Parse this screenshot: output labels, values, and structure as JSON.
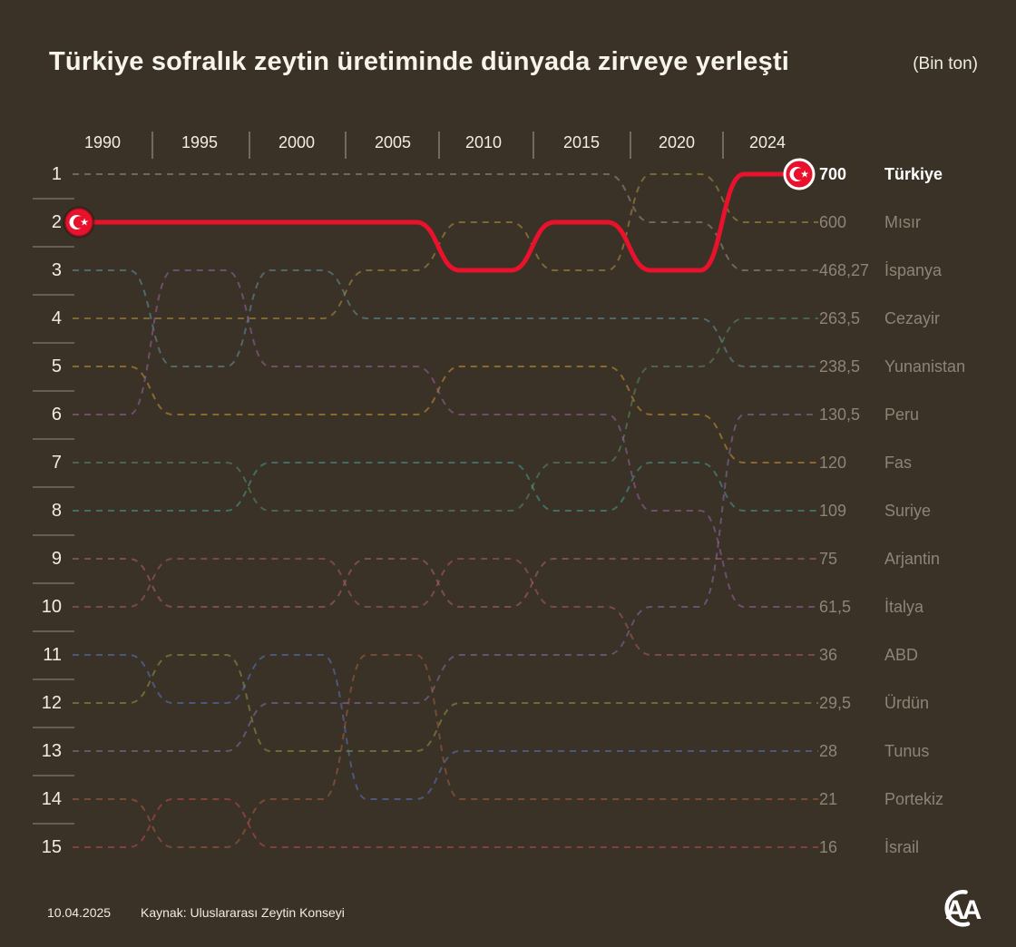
{
  "header": {
    "title": "Türkiye sofralık zeytin üretiminde dünyada zirveye yerleşti",
    "unit": "(Bin ton)"
  },
  "footer": {
    "date": "10.04.2025",
    "source": "Kaynak: Uluslararası Zeytin Konseyi",
    "logo_text": "AA"
  },
  "colors": {
    "background": "#3a3127",
    "highlight_red": "#e8122d",
    "muted_label": "#8e8476"
  },
  "chart_data": {
    "type": "line",
    "subtype": "bump-ranking",
    "years": [
      1990,
      1995,
      2000,
      2005,
      2010,
      2015,
      2020,
      2024
    ],
    "rank_axis": [
      1,
      2,
      3,
      4,
      5,
      6,
      7,
      8,
      9,
      10,
      11,
      12,
      13,
      14,
      15
    ],
    "highlight_country": "Türkiye",
    "series": [
      {
        "name": "Türkiye",
        "value_2024": "700",
        "final_rank": 1,
        "color": "#e8122d",
        "highlight": true,
        "ranks": [
          2,
          2,
          2,
          2,
          3,
          2,
          3,
          1
        ]
      },
      {
        "name": "Mısır",
        "value_2024": "600",
        "final_rank": 2,
        "color": "#a5893f",
        "highlight": false,
        "ranks": [
          4,
          4,
          4,
          3,
          2,
          3,
          1,
          2
        ]
      },
      {
        "name": "İspanya",
        "value_2024": "468,27",
        "final_rank": 3,
        "color": "#8f897c",
        "highlight": false,
        "ranks": [
          1,
          1,
          1,
          1,
          1,
          1,
          2,
          3
        ]
      },
      {
        "name": "Cezayir",
        "value_2024": "263,5",
        "final_rank": 4,
        "color": "#55885c",
        "highlight": false,
        "ranks": [
          7,
          7,
          8,
          8,
          8,
          7,
          5,
          4
        ]
      },
      {
        "name": "Yunanistan",
        "value_2024": "238,5",
        "final_rank": 5,
        "color": "#5f8b96",
        "highlight": false,
        "ranks": [
          3,
          5,
          3,
          4,
          4,
          4,
          4,
          5
        ]
      },
      {
        "name": "Peru",
        "value_2024": "130,5",
        "final_rank": 6,
        "color": "#83689c",
        "highlight": false,
        "ranks": [
          13,
          13,
          12,
          12,
          11,
          11,
          10,
          6
        ]
      },
      {
        "name": "Fas",
        "value_2024": "120",
        "final_rank": 7,
        "color": "#bd8a33",
        "highlight": false,
        "ranks": [
          5,
          6,
          6,
          6,
          5,
          5,
          6,
          7
        ]
      },
      {
        "name": "Suriye",
        "value_2024": "109",
        "final_rank": 8,
        "color": "#45958a",
        "highlight": false,
        "ranks": [
          8,
          8,
          7,
          7,
          7,
          8,
          7,
          8
        ]
      },
      {
        "name": "Arjantin",
        "value_2024": "75",
        "final_rank": 9,
        "color": "#a55f6b",
        "highlight": false,
        "ranks": [
          9,
          10,
          10,
          9,
          10,
          9,
          9,
          9
        ]
      },
      {
        "name": "İtalya",
        "value_2024": "61,5",
        "final_rank": 10,
        "color": "#8f5f99",
        "highlight": false,
        "ranks": [
          6,
          3,
          5,
          5,
          6,
          6,
          8,
          10
        ]
      },
      {
        "name": "ABD",
        "value_2024": "36",
        "final_rank": 11,
        "color": "#a05a55",
        "highlight": false,
        "ranks": [
          10,
          9,
          9,
          10,
          9,
          10,
          11,
          11
        ]
      },
      {
        "name": "Ürdün",
        "value_2024": "29,5",
        "final_rank": 12,
        "color": "#84913f",
        "highlight": false,
        "ranks": [
          12,
          11,
          13,
          13,
          12,
          12,
          12,
          12
        ]
      },
      {
        "name": "Tunus",
        "value_2024": "28",
        "final_rank": 13,
        "color": "#5671b5",
        "highlight": false,
        "ranks": [
          11,
          12,
          11,
          14,
          13,
          13,
          13,
          13
        ]
      },
      {
        "name": "Portekiz",
        "value_2024": "21",
        "final_rank": 14,
        "color": "#9d5a41",
        "highlight": false,
        "ranks": [
          14,
          15,
          14,
          11,
          14,
          14,
          14,
          14
        ]
      },
      {
        "name": "İsrail",
        "value_2024": "16",
        "final_rank": 15,
        "color": "#b14a47",
        "highlight": false,
        "ranks": [
          15,
          14,
          15,
          15,
          15,
          15,
          15,
          15
        ]
      }
    ]
  }
}
